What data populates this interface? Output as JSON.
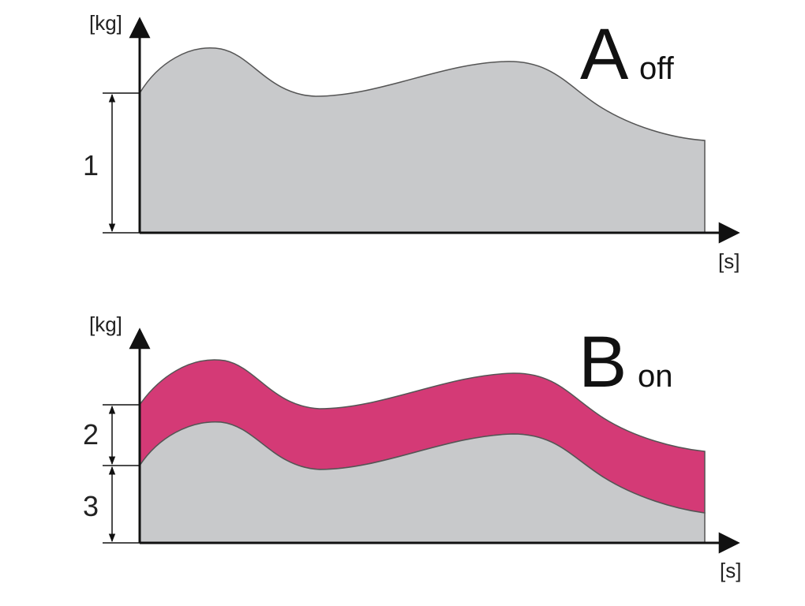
{
  "panels": [
    {
      "y_axis_label": "[kg]",
      "x_axis_label": "[s]",
      "letter": "A",
      "state": "off",
      "dimension_labels": [
        "1"
      ]
    },
    {
      "y_axis_label": "[kg]",
      "x_axis_label": "[s]",
      "letter": "B",
      "state": "on",
      "dimension_labels": [
        "2",
        "3"
      ]
    }
  ]
}
